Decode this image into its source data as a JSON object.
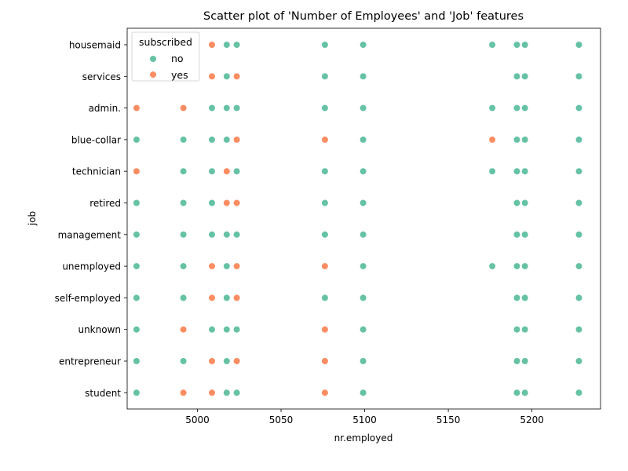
{
  "chart_data": {
    "type": "scatter",
    "title": "Scatter plot of 'Number of Employees' and 'Job' features",
    "xlabel": "nr.employed",
    "ylabel": "job",
    "xlim": [
      4958,
      5241
    ],
    "xticks": [
      5000,
      5050,
      5100,
      5150,
      5200
    ],
    "categories": [
      "housemaid",
      "services",
      "admin.",
      "blue-collar",
      "technician",
      "retired",
      "management",
      "unemployed",
      "self-employed",
      "unknown",
      "entrepreneur",
      "student"
    ],
    "legend": {
      "title": "subscribed",
      "position": "top-left"
    },
    "grid": false,
    "series": [
      {
        "name": "no",
        "color": "#66c2a5",
        "points": [
          [
            "housemaid",
            5017.5
          ],
          [
            "housemaid",
            5023.5
          ],
          [
            "housemaid",
            5076.2
          ],
          [
            "housemaid",
            5099.1
          ],
          [
            "housemaid",
            5176.3
          ],
          [
            "housemaid",
            5191.0
          ],
          [
            "housemaid",
            5195.8
          ],
          [
            "housemaid",
            5228.1
          ],
          [
            "services",
            5017.5
          ],
          [
            "services",
            5076.2
          ],
          [
            "services",
            5099.1
          ],
          [
            "services",
            5191.0
          ],
          [
            "services",
            5195.8
          ],
          [
            "services",
            5228.1
          ],
          [
            "admin.",
            5008.7
          ],
          [
            "admin.",
            5017.5
          ],
          [
            "admin.",
            5023.5
          ],
          [
            "admin.",
            5076.2
          ],
          [
            "admin.",
            5099.1
          ],
          [
            "admin.",
            5176.3
          ],
          [
            "admin.",
            5191.0
          ],
          [
            "admin.",
            5195.8
          ],
          [
            "admin.",
            5228.1
          ],
          [
            "blue-collar",
            4963.6
          ],
          [
            "blue-collar",
            4991.6
          ],
          [
            "blue-collar",
            5008.7
          ],
          [
            "blue-collar",
            5017.5
          ],
          [
            "blue-collar",
            5099.1
          ],
          [
            "blue-collar",
            5191.0
          ],
          [
            "blue-collar",
            5195.8
          ],
          [
            "blue-collar",
            5228.1
          ],
          [
            "technician",
            4991.6
          ],
          [
            "technician",
            5008.7
          ],
          [
            "technician",
            5023.5
          ],
          [
            "technician",
            5076.2
          ],
          [
            "technician",
            5099.1
          ],
          [
            "technician",
            5176.3
          ],
          [
            "technician",
            5191.0
          ],
          [
            "technician",
            5195.8
          ],
          [
            "technician",
            5228.1
          ],
          [
            "retired",
            4963.6
          ],
          [
            "retired",
            4991.6
          ],
          [
            "retired",
            5008.7
          ],
          [
            "retired",
            5076.2
          ],
          [
            "retired",
            5099.1
          ],
          [
            "retired",
            5191.0
          ],
          [
            "retired",
            5195.8
          ],
          [
            "retired",
            5228.1
          ],
          [
            "management",
            4963.6
          ],
          [
            "management",
            4991.6
          ],
          [
            "management",
            5008.7
          ],
          [
            "management",
            5017.5
          ],
          [
            "management",
            5023.5
          ],
          [
            "management",
            5076.2
          ],
          [
            "management",
            5099.1
          ],
          [
            "management",
            5191.0
          ],
          [
            "management",
            5195.8
          ],
          [
            "management",
            5228.1
          ],
          [
            "unemployed",
            4963.6
          ],
          [
            "unemployed",
            4991.6
          ],
          [
            "unemployed",
            5017.5
          ],
          [
            "unemployed",
            5099.1
          ],
          [
            "unemployed",
            5176.3
          ],
          [
            "unemployed",
            5191.0
          ],
          [
            "unemployed",
            5195.8
          ],
          [
            "unemployed",
            5228.1
          ],
          [
            "self-employed",
            4963.6
          ],
          [
            "self-employed",
            4991.6
          ],
          [
            "self-employed",
            5017.5
          ],
          [
            "self-employed",
            5076.2
          ],
          [
            "self-employed",
            5099.1
          ],
          [
            "self-employed",
            5191.0
          ],
          [
            "self-employed",
            5195.8
          ],
          [
            "self-employed",
            5228.1
          ],
          [
            "unknown",
            4963.6
          ],
          [
            "unknown",
            5008.7
          ],
          [
            "unknown",
            5017.5
          ],
          [
            "unknown",
            5023.5
          ],
          [
            "unknown",
            5099.1
          ],
          [
            "unknown",
            5191.0
          ],
          [
            "unknown",
            5195.8
          ],
          [
            "unknown",
            5228.1
          ],
          [
            "entrepreneur",
            4963.6
          ],
          [
            "entrepreneur",
            4991.6
          ],
          [
            "entrepreneur",
            5017.5
          ],
          [
            "entrepreneur",
            5099.1
          ],
          [
            "entrepreneur",
            5191.0
          ],
          [
            "entrepreneur",
            5195.8
          ],
          [
            "entrepreneur",
            5228.1
          ],
          [
            "student",
            4963.6
          ],
          [
            "student",
            5017.5
          ],
          [
            "student",
            5023.5
          ],
          [
            "student",
            5099.1
          ],
          [
            "student",
            5191.0
          ],
          [
            "student",
            5195.8
          ],
          [
            "student",
            5228.1
          ]
        ]
      },
      {
        "name": "yes",
        "color": "#fc8d62",
        "points": [
          [
            "housemaid",
            5008.7
          ],
          [
            "services",
            5008.7
          ],
          [
            "services",
            5023.5
          ],
          [
            "admin.",
            4963.6
          ],
          [
            "admin.",
            4991.6
          ],
          [
            "blue-collar",
            5023.5
          ],
          [
            "blue-collar",
            5076.2
          ],
          [
            "blue-collar",
            5176.3
          ],
          [
            "technician",
            4963.6
          ],
          [
            "technician",
            5017.5
          ],
          [
            "retired",
            5017.5
          ],
          [
            "retired",
            5023.5
          ],
          [
            "unemployed",
            5008.7
          ],
          [
            "unemployed",
            5023.5
          ],
          [
            "unemployed",
            5076.2
          ],
          [
            "self-employed",
            5008.7
          ],
          [
            "self-employed",
            5023.5
          ],
          [
            "unknown",
            4991.6
          ],
          [
            "unknown",
            5076.2
          ],
          [
            "entrepreneur",
            5008.7
          ],
          [
            "entrepreneur",
            5023.5
          ],
          [
            "entrepreneur",
            5076.2
          ],
          [
            "student",
            4991.6
          ],
          [
            "student",
            5008.7
          ],
          [
            "student",
            5076.2
          ]
        ]
      }
    ]
  }
}
